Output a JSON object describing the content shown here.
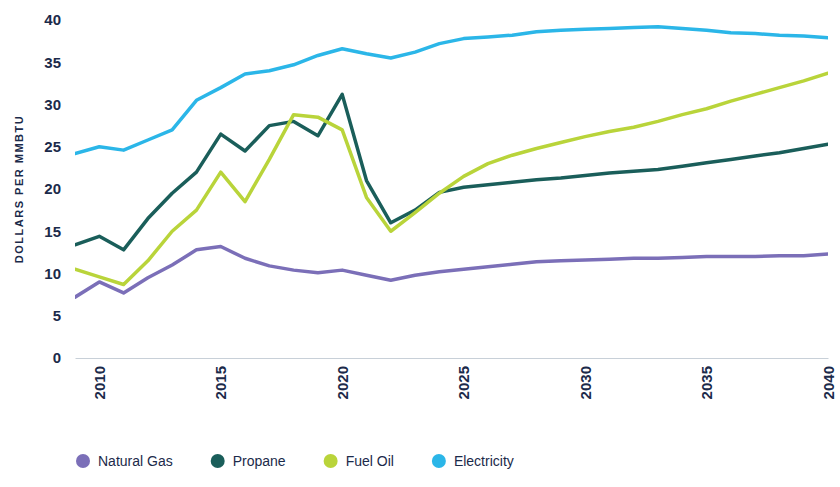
{
  "chart_data": {
    "type": "line",
    "y_label": "DOLLARS PER MMBTU",
    "x": [
      2009,
      2010,
      2011,
      2012,
      2013,
      2014,
      2015,
      2016,
      2017,
      2018,
      2019,
      2020,
      2021,
      2022,
      2023,
      2024,
      2025,
      2026,
      2027,
      2028,
      2029,
      2030,
      2031,
      2032,
      2033,
      2034,
      2035,
      2036,
      2037,
      2038,
      2039,
      2040
    ],
    "xlim": [
      2009,
      2040
    ],
    "xticks": [
      2010,
      2015,
      2020,
      2025,
      2030,
      2035,
      2040
    ],
    "ylim": [
      0,
      40
    ],
    "yticks": [
      0,
      5,
      10,
      15,
      20,
      25,
      30,
      35,
      40
    ],
    "grid": false,
    "legend": "bottom",
    "series": [
      {
        "name": "Natural Gas",
        "color": "#7b6fb8",
        "values": [
          7.2,
          9.0,
          7.7,
          9.5,
          11.0,
          12.8,
          13.2,
          11.8,
          10.9,
          10.4,
          10.1,
          10.4,
          9.8,
          9.2,
          9.8,
          10.2,
          10.5,
          10.8,
          11.1,
          11.4,
          11.5,
          11.6,
          11.7,
          11.8,
          11.8,
          11.9,
          12.0,
          12.0,
          12.0,
          12.1,
          12.1,
          12.3
        ]
      },
      {
        "name": "Propane",
        "color": "#1a5e5a",
        "values": [
          13.4,
          14.4,
          12.8,
          16.5,
          19.5,
          22.0,
          26.5,
          24.5,
          27.5,
          28.0,
          26.3,
          31.2,
          21.0,
          16.0,
          17.5,
          19.6,
          20.2,
          20.5,
          20.8,
          21.1,
          21.3,
          21.6,
          21.9,
          22.1,
          22.3,
          22.7,
          23.1,
          23.5,
          23.9,
          24.3,
          24.8,
          25.3
        ]
      },
      {
        "name": "Fuel Oil",
        "color": "#b9d43a",
        "values": [
          10.5,
          9.6,
          8.7,
          11.5,
          15.0,
          17.5,
          22.0,
          18.5,
          23.5,
          28.8,
          28.5,
          27.0,
          19.0,
          15.0,
          17.2,
          19.5,
          21.5,
          23.0,
          24.0,
          24.8,
          25.5,
          26.2,
          26.8,
          27.3,
          28.0,
          28.8,
          29.5,
          30.4,
          31.2,
          32.0,
          32.8,
          33.7
        ]
      },
      {
        "name": "Electricity",
        "color": "#2bb6e8",
        "values": [
          24.2,
          25.0,
          24.6,
          25.8,
          27.0,
          30.5,
          32.0,
          33.6,
          34.0,
          34.7,
          35.8,
          36.6,
          36.0,
          35.5,
          36.2,
          37.2,
          37.8,
          38.0,
          38.2,
          38.6,
          38.8,
          38.9,
          39.0,
          39.1,
          39.2,
          39.0,
          38.8,
          38.5,
          38.4,
          38.2,
          38.1,
          37.9
        ]
      }
    ]
  }
}
